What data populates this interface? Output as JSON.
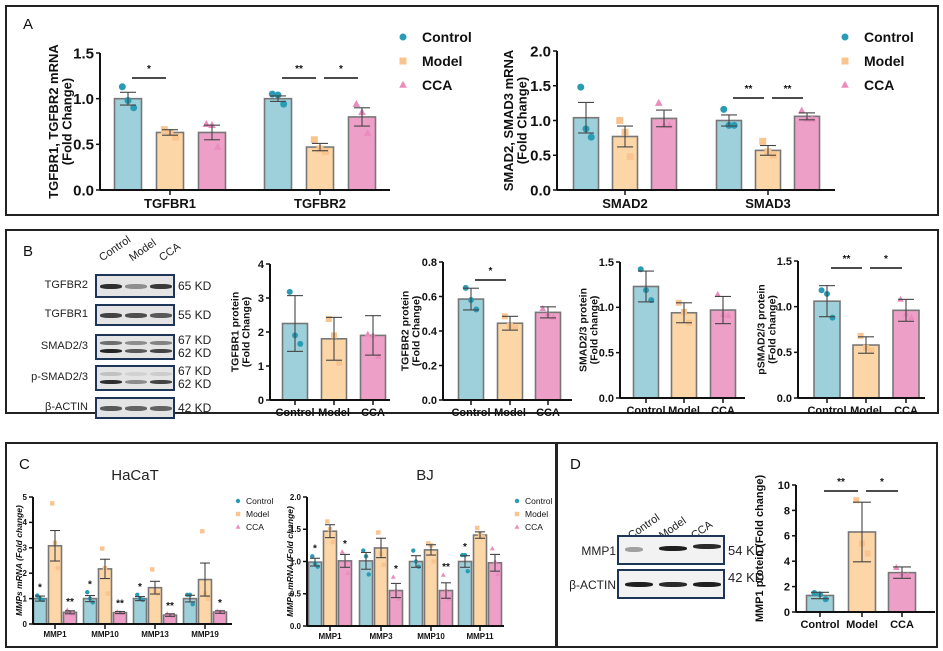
{
  "colors": {
    "control": "#9dd0da",
    "control_dot": "#2a9bb5",
    "model": "#fdd6a8",
    "model_dot": "#f9c48e",
    "cca": "#ee9fc8",
    "cca_dot": "#ea8cbd",
    "bar_edge": "#777777"
  },
  "groups": [
    "Control",
    "Model",
    "CCA"
  ],
  "panels": {
    "A": {
      "label": "A"
    },
    "B": {
      "label": "B",
      "lanes": [
        "Control",
        "Model",
        "CCA"
      ],
      "blots": [
        {
          "name": "TGFBR2",
          "kd": [
            "65 KD"
          ]
        },
        {
          "name": "TGFBR1",
          "kd": [
            "55 KD"
          ]
        },
        {
          "name": "SMAD2/3",
          "kd": [
            "67 KD",
            "62 KD"
          ]
        },
        {
          "name": "p-SMAD2/3",
          "kd": [
            "67 KD",
            "62 KD"
          ]
        },
        {
          "name": "β-ACTIN",
          "kd": [
            "42 KD"
          ]
        }
      ]
    },
    "C": {
      "label": "C"
    },
    "D": {
      "label": "D",
      "lanes": [
        "Control",
        "Model",
        "CCA"
      ],
      "blots": [
        {
          "name": "MMP1",
          "kd": [
            "54 KD"
          ]
        },
        {
          "name": "β-ACTIN",
          "kd": [
            "42 KD"
          ]
        }
      ]
    }
  },
  "chart_data": [
    {
      "id": "A1",
      "type": "bar",
      "ylabel": "TGFBR1, TGFBR2 mRNA\n(Fold Change)",
      "ylim": [
        0,
        1.5
      ],
      "yticks": [
        "0.0",
        "0.5",
        "1.0",
        "1.5"
      ],
      "categories": [
        "TGFBR1",
        "TGFBR2"
      ],
      "legend": [
        "Control",
        "Model",
        "CCA"
      ],
      "legend_position": "right",
      "series": [
        {
          "name": "Control",
          "values": [
            1.0,
            1.0
          ],
          "err": [
            0.07,
            0.03
          ],
          "points": [
            [
              1.13,
              0.98,
              0.9
            ],
            [
              1.05,
              1.04,
              0.94
            ]
          ]
        },
        {
          "name": "Model",
          "values": [
            0.63,
            0.47
          ],
          "err": [
            0.03,
            0.04
          ],
          "points": [
            [
              0.66,
              0.63,
              0.58
            ],
            [
              0.55,
              0.45,
              0.42
            ]
          ]
        },
        {
          "name": "CCA",
          "values": [
            0.63,
            0.8
          ],
          "err": [
            0.08,
            0.1
          ],
          "points": [
            [
              0.72,
              0.71,
              0.47
            ],
            [
              0.94,
              0.85,
              0.62
            ]
          ]
        }
      ],
      "significance": [
        {
          "cat": 0,
          "from": 0,
          "to": 1,
          "label": "*"
        },
        {
          "cat": 1,
          "from": 0,
          "to": 1,
          "label": "**"
        },
        {
          "cat": 1,
          "from": 1,
          "to": 2,
          "label": "*"
        }
      ]
    },
    {
      "id": "A2",
      "type": "bar",
      "ylabel": "SMAD2, SMAD3 mRNA\n(Fold Change)",
      "ylim": [
        0,
        2.0
      ],
      "yticks": [
        "0.0",
        "0.5",
        "1.0",
        "1.5",
        "2.0"
      ],
      "categories": [
        "SMAD2",
        "SMAD3"
      ],
      "legend": [
        "Control",
        "Model",
        "CCA"
      ],
      "legend_position": "right",
      "series": [
        {
          "name": "Control",
          "values": [
            1.04,
            1.0
          ],
          "err": [
            0.22,
            0.08
          ],
          "points": [
            [
              1.48,
              0.88,
              0.76
            ],
            [
              1.16,
              0.93,
              0.93
            ]
          ]
        },
        {
          "name": "Model",
          "values": [
            0.77,
            0.57
          ],
          "err": [
            0.15,
            0.07
          ],
          "points": [
            [
              1.0,
              0.83,
              0.48
            ],
            [
              0.7,
              0.55,
              0.5
            ]
          ]
        },
        {
          "name": "CCA",
          "values": [
            1.03,
            1.06
          ],
          "err": [
            0.12,
            0.05
          ],
          "points": [
            [
              1.25,
              0.93,
              0.93
            ],
            [
              1.14,
              1.02,
              1.02
            ]
          ]
        }
      ],
      "significance": [
        {
          "cat": 1,
          "from": 0,
          "to": 1,
          "label": "**"
        },
        {
          "cat": 1,
          "from": 1,
          "to": 2,
          "label": "**"
        }
      ]
    },
    {
      "id": "B1",
      "type": "bar",
      "ylabel": "TGFBR1 protein\n(Fold Change)",
      "ylim": [
        0,
        4
      ],
      "yticks": [
        "0",
        "1",
        "2",
        "3",
        "4"
      ],
      "categories": [
        "Control",
        "Model",
        "CCA"
      ],
      "values": [
        2.25,
        1.8,
        1.9
      ],
      "err": [
        0.82,
        0.63,
        0.58
      ],
      "points": [
        [
          3.18,
          1.9,
          1.65
        ],
        [
          2.38,
          1.9,
          1.1
        ],
        [
          1.93,
          1.9,
          1.28
        ]
      ],
      "significance": []
    },
    {
      "id": "B2",
      "type": "bar",
      "ylabel": "TGFBR2 protein\n(Fold Change)",
      "ylim": [
        0,
        0.8
      ],
      "yticks": [
        "0.0",
        "0.2",
        "0.4",
        "0.6",
        "0.8"
      ],
      "categories": [
        "Control",
        "Model",
        "CCA"
      ],
      "values": [
        0.585,
        0.445,
        0.508
      ],
      "err": [
        0.063,
        0.04,
        0.032
      ],
      "points": [
        [
          0.65,
          0.58,
          0.525
        ],
        [
          0.485,
          0.43,
          0.42
        ],
        [
          0.53,
          0.5,
          0.48
        ]
      ],
      "significance": [
        {
          "from": 0,
          "to": 1,
          "label": "*"
        }
      ]
    },
    {
      "id": "B3",
      "type": "bar",
      "ylabel": "SMAD2/3 protein\n(Fold change)",
      "ylim": [
        0,
        1.5
      ],
      "yticks": [
        "0.0",
        "0.5",
        "1.0",
        "1.5"
      ],
      "categories": [
        "Control",
        "Model",
        "CCA"
      ],
      "values": [
        1.23,
        0.94,
        0.97
      ],
      "err": [
        0.17,
        0.11,
        0.15
      ],
      "points": [
        [
          1.42,
          1.19,
          1.08
        ],
        [
          1.05,
          0.95,
          0.83
        ],
        [
          1.14,
          0.92,
          0.91
        ]
      ],
      "significance": []
    },
    {
      "id": "B4",
      "type": "bar",
      "ylabel": "pSMAD2/3 protein\n(Fold change)",
      "ylim": [
        0,
        1.5
      ],
      "yticks": [
        "0.0",
        "0.5",
        "1.0",
        "1.5"
      ],
      "categories": [
        "Control",
        "Model",
        "CCA"
      ],
      "values": [
        1.06,
        0.58,
        0.96
      ],
      "err": [
        0.17,
        0.09,
        0.12
      ],
      "points": [
        [
          1.18,
          1.14,
          0.88
        ],
        [
          0.68,
          0.55,
          0.52
        ],
        [
          1.08,
          0.92,
          0.88
        ]
      ],
      "significance": [
        {
          "from": 0,
          "to": 1,
          "label": "**"
        },
        {
          "from": 1,
          "to": 2,
          "label": "*"
        }
      ]
    },
    {
      "id": "C1",
      "type": "bar",
      "title": "HaCaT",
      "ylabel": "MMPs mRNA (Fold change)",
      "ylim": [
        0,
        5
      ],
      "yticks": [
        "0",
        "1",
        "2",
        "3",
        "4",
        "5"
      ],
      "categories": [
        "MMP1",
        "MMP10",
        "MMP13",
        "MMP19"
      ],
      "legend": [
        "Control",
        "Model",
        "CCA"
      ],
      "legend_position": "right",
      "series": [
        {
          "name": "Control",
          "values": [
            1.0,
            1.0,
            1.0,
            1.0
          ],
          "err": [
            0.1,
            0.12,
            0.08,
            0.13
          ],
          "points": [
            [
              1.12,
              1.0,
              0.95
            ],
            [
              1.25,
              1.0,
              0.85
            ],
            [
              1.15,
              1.0,
              0.95
            ],
            [
              1.15,
              1.15,
              0.78
            ]
          ],
          "labels": [
            "*",
            "*",
            "*",
            ""
          ]
        },
        {
          "name": "Model",
          "values": [
            3.08,
            2.17,
            1.43,
            1.75
          ],
          "err": [
            0.6,
            0.38,
            0.25,
            0.65
          ],
          "points": [
            [
              4.75,
              3.2,
              2.2
            ],
            [
              2.97,
              2.2,
              1.2
            ],
            [
              2.15,
              1.3,
              1.2
            ],
            [
              3.65,
              1.2,
              1.0
            ]
          ],
          "labels": [
            "",
            "",
            "",
            ""
          ]
        },
        {
          "name": "CCA",
          "values": [
            0.46,
            0.45,
            0.35,
            0.47
          ],
          "err": [
            0.06,
            0.04,
            0.05,
            0.05
          ],
          "points": [
            [
              0.55,
              0.45,
              0.4
            ],
            [
              0.48,
              0.45,
              0.42
            ],
            [
              0.4,
              0.35,
              0.3
            ],
            [
              0.5,
              0.47,
              0.45
            ]
          ],
          "labels": [
            "**",
            "**",
            "**",
            "*"
          ]
        }
      ]
    },
    {
      "id": "C2",
      "type": "bar",
      "title": "BJ",
      "ylabel": "MMPs mRNA (Fold change)",
      "ylim": [
        0,
        2.0
      ],
      "yticks": [
        "0.0",
        "0.5",
        "1.0",
        "1.5",
        "2.0"
      ],
      "categories": [
        "MMP1",
        "MMP3",
        "MMP10",
        "MMP11"
      ],
      "legend": [
        "Control",
        "Model",
        "CCA"
      ],
      "legend_position": "right",
      "series": [
        {
          "name": "Control",
          "values": [
            0.99,
            1.01,
            1.0,
            1.0
          ],
          "err": [
            0.06,
            0.13,
            0.09,
            0.09
          ],
          "points": [
            [
              1.08,
              0.97,
              0.92
            ],
            [
              1.17,
              1.08,
              0.8
            ],
            [
              1.17,
              1.0,
              0.92
            ],
            [
              1.1,
              1.1,
              0.85
            ]
          ],
          "labels": [
            "*",
            "",
            "",
            "*"
          ]
        },
        {
          "name": "Model",
          "values": [
            1.47,
            1.21,
            1.18,
            1.41
          ],
          "err": [
            0.1,
            0.15,
            0.08,
            0.05
          ],
          "points": [
            [
              1.62,
              1.5,
              1.3
            ],
            [
              1.45,
              1.12,
              0.95
            ],
            [
              1.28,
              1.25,
              1.0
            ],
            [
              1.52,
              1.42,
              1.38
            ]
          ],
          "labels": [
            "",
            "",
            "",
            ""
          ]
        },
        {
          "name": "CCA",
          "values": [
            1.01,
            0.55,
            0.55,
            0.98
          ],
          "err": [
            0.1,
            0.11,
            0.12,
            0.13
          ],
          "points": [
            [
              1.15,
              1.0,
              0.82
            ],
            [
              0.76,
              0.55,
              0.42
            ],
            [
              0.79,
              0.55,
              0.42
            ],
            [
              1.2,
              1.0,
              0.8
            ]
          ],
          "labels": [
            "*",
            "*",
            "**",
            ""
          ]
        }
      ]
    },
    {
      "id": "D1",
      "type": "bar",
      "ylabel": "MMP1 protein (Fold change)",
      "ylim": [
        0,
        10
      ],
      "yticks": [
        "0",
        "2",
        "4",
        "6",
        "8",
        "10"
      ],
      "categories": [
        "Control",
        "Model",
        "CCA"
      ],
      "values": [
        1.3,
        6.3,
        3.1
      ],
      "err": [
        0.25,
        2.35,
        0.45
      ],
      "points": [
        [
          1.5,
          1.4,
          1.0
        ],
        [
          8.8,
          5.4,
          4.6
        ],
        [
          3.5,
          3.0,
          2.9
        ]
      ],
      "significance": [
        {
          "from": 0,
          "to": 1,
          "label": "**"
        },
        {
          "from": 1,
          "to": 2,
          "label": "*"
        }
      ]
    }
  ]
}
